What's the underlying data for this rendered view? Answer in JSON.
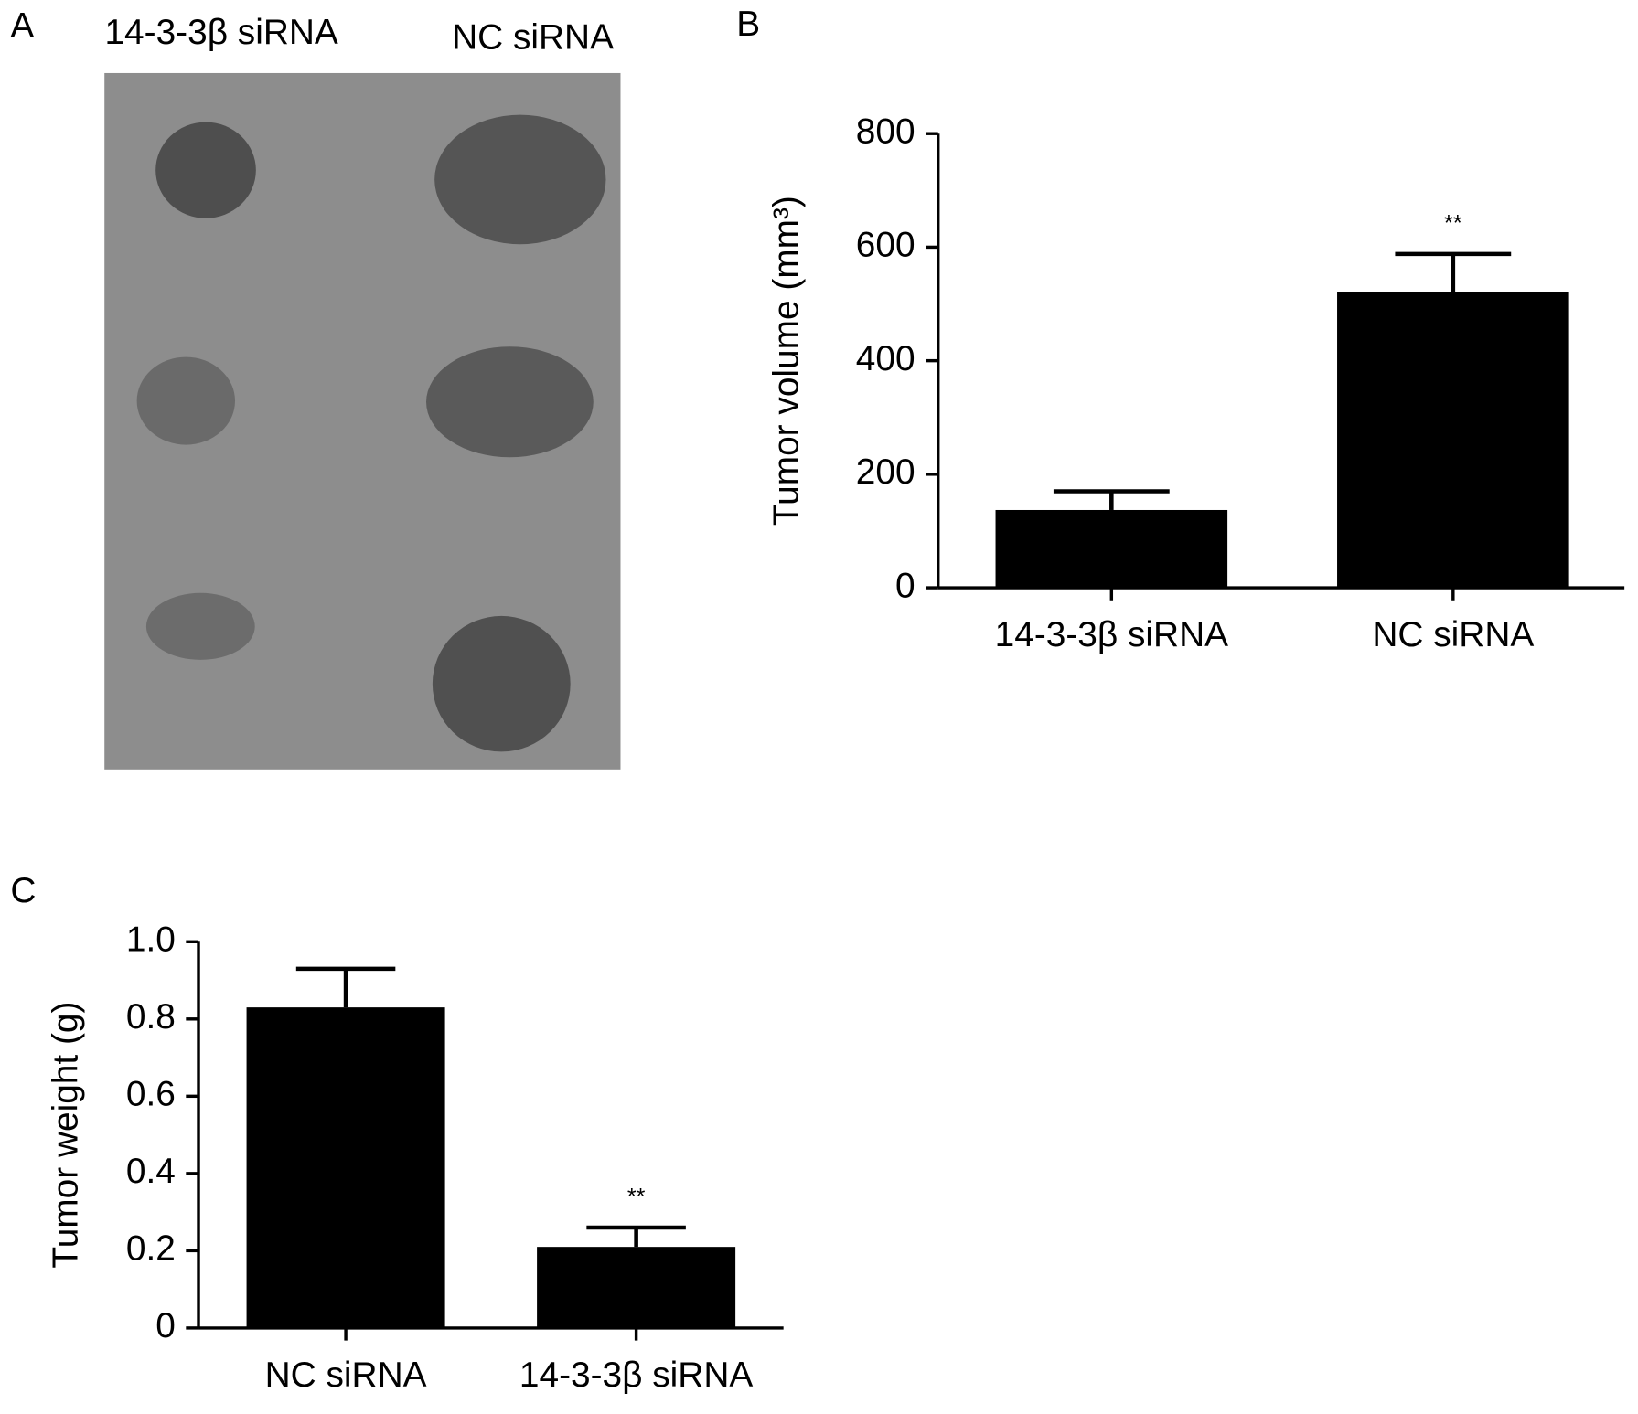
{
  "panel_a": {
    "label": "A",
    "groups": [
      "14-3-3β siRNA",
      "NC siRNA"
    ]
  },
  "chart_data": [
    {
      "type": "bar",
      "panel_label": "B",
      "ylabel": "Tumor volume (mm³)",
      "categories": [
        "14-3-3β siRNA",
        "NC siRNA"
      ],
      "values": [
        137,
        521
      ],
      "errors": [
        33,
        67
      ],
      "annotations": [
        null,
        "**"
      ],
      "color": "#000000",
      "ylim": [
        0,
        800
      ],
      "yticks": [
        0,
        200,
        400,
        600,
        800
      ]
    },
    {
      "type": "bar",
      "panel_label": "C",
      "ylabel": "Tumor weight (g)",
      "categories": [
        "NC siRNA",
        "14-3-3β siRNA"
      ],
      "values": [
        0.83,
        0.21
      ],
      "errors": [
        0.1,
        0.05
      ],
      "annotations": [
        null,
        "**"
      ],
      "color": "#000000",
      "ylim": [
        0,
        1
      ],
      "yticks": [
        0,
        0.2,
        0.4,
        0.6,
        0.8,
        {
          "value": 1,
          "label": "1.0"
        }
      ]
    }
  ]
}
